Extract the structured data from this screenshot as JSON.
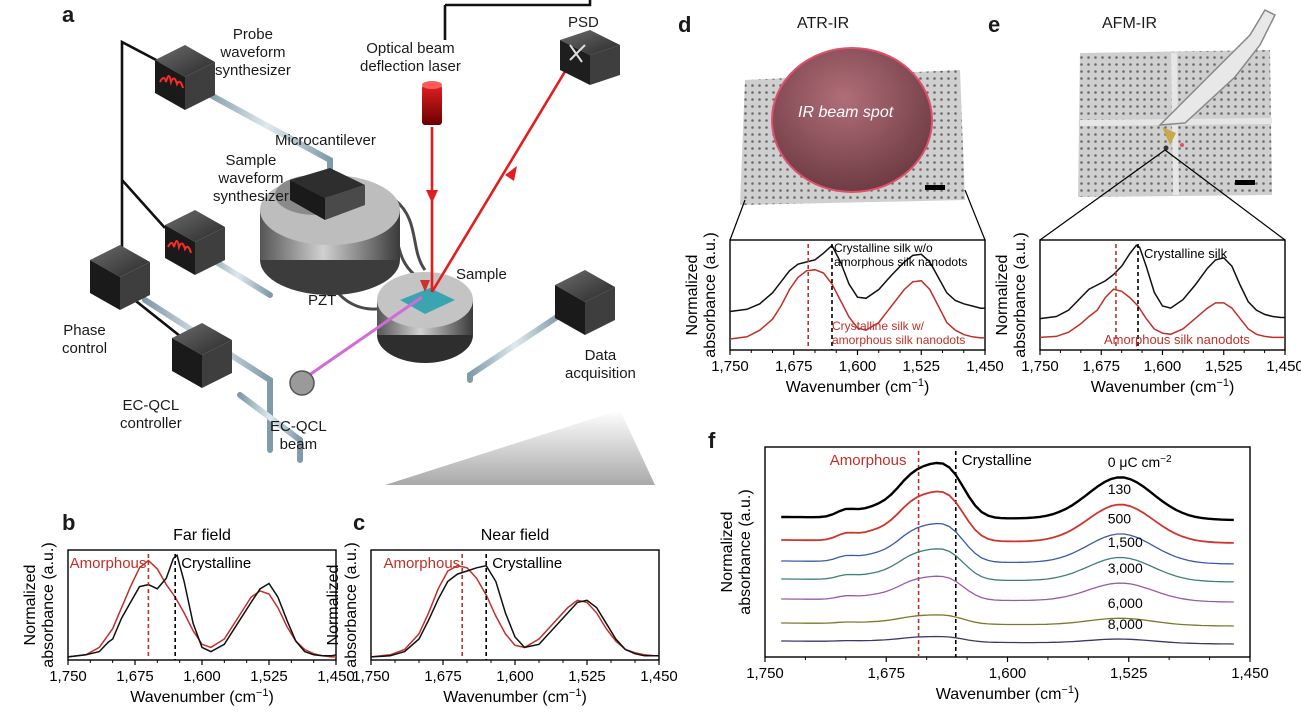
{
  "panel_letters": [
    "a",
    "b",
    "c",
    "d",
    "e",
    "f"
  ],
  "panel_a": {
    "labels": {
      "probe": [
        "Probe",
        "waveform",
        "synthesizer"
      ],
      "optical": [
        "Optical beam",
        "deflection laser"
      ],
      "psd": "PSD",
      "sample_wf": [
        "Sample",
        "waveform",
        "synthesizer"
      ],
      "microcantilever": "Microcantilever",
      "pzt": "PZT",
      "sample": "Sample",
      "phase": [
        "Phase",
        "control"
      ],
      "ecqcl_controller": [
        "EC-QCL",
        "controller"
      ],
      "ecqcl_beam": [
        "EC-QCL",
        "beam"
      ],
      "data_acq": [
        "Data",
        "acquisition"
      ]
    }
  },
  "panel_d": {
    "title": "ATR-IR",
    "spot": "IR beam spot"
  },
  "panel_e": {
    "title": "AFM-IR"
  },
  "axis": {
    "xlabel": "Wavenumber (cm",
    "xlabel_sup": "−1",
    "xlabel_end": ")",
    "ylabel": [
      "Normalized",
      "absorbance (a.u.)"
    ]
  },
  "chart_data": [
    {
      "id": "b",
      "type": "line",
      "title": "Far field",
      "x_reversed": true,
      "xlim": [
        1750,
        1450
      ],
      "xticks": [
        "1,750",
        "1,675",
        "1,600",
        "1,525",
        "1,450"
      ],
      "annotations": {
        "red": "Amorphous",
        "black": "Crystalline"
      },
      "vlines": [
        1660,
        1630
      ],
      "series": [
        {
          "name": "Amorphous",
          "color": "#c0302a",
          "x": [
            1750,
            1730,
            1715,
            1700,
            1690,
            1680,
            1670,
            1660,
            1650,
            1640,
            1630,
            1620,
            1610,
            1600,
            1590,
            1575,
            1560,
            1545,
            1535,
            1525,
            1515,
            1505,
            1495,
            1485,
            1475,
            1465,
            1455,
            1450
          ],
          "y": [
            0.03,
            0.05,
            0.12,
            0.3,
            0.5,
            0.7,
            0.88,
            0.95,
            0.87,
            0.72,
            0.6,
            0.45,
            0.28,
            0.15,
            0.12,
            0.2,
            0.4,
            0.6,
            0.66,
            0.63,
            0.5,
            0.32,
            0.18,
            0.1,
            0.06,
            0.04,
            0.03,
            0.03
          ]
        },
        {
          "name": "Crystalline",
          "color": "#111111",
          "x": [
            1750,
            1730,
            1715,
            1705,
            1700,
            1690,
            1680,
            1670,
            1660,
            1650,
            1640,
            1632,
            1628,
            1620,
            1610,
            1600,
            1590,
            1575,
            1560,
            1545,
            1535,
            1525,
            1515,
            1505,
            1495,
            1485,
            1475,
            1465,
            1455,
            1450
          ],
          "y": [
            0.03,
            0.05,
            0.08,
            0.17,
            0.2,
            0.4,
            0.55,
            0.7,
            0.72,
            0.68,
            0.78,
            0.97,
            1.0,
            0.75,
            0.35,
            0.12,
            0.08,
            0.15,
            0.35,
            0.55,
            0.68,
            0.73,
            0.6,
            0.38,
            0.18,
            0.08,
            0.05,
            0.04,
            0.04,
            0.05
          ]
        }
      ]
    },
    {
      "id": "c",
      "type": "line",
      "title": "Near field",
      "x_reversed": true,
      "xlim": [
        1750,
        1450
      ],
      "xticks": [
        "1,750",
        "1,675",
        "1,600",
        "1,525",
        "1,450"
      ],
      "annotations": {
        "red": "Amorphous",
        "black": "Crystalline"
      },
      "vlines": [
        1655,
        1630
      ],
      "series": [
        {
          "name": "Amorphous",
          "color": "#c0302a",
          "x": [
            1750,
            1730,
            1715,
            1700,
            1690,
            1680,
            1670,
            1660,
            1650,
            1640,
            1630,
            1620,
            1610,
            1600,
            1590,
            1575,
            1560,
            1545,
            1535,
            1525,
            1515,
            1505,
            1495,
            1485,
            1475,
            1465,
            1455,
            1450
          ],
          "y": [
            0.03,
            0.05,
            0.1,
            0.25,
            0.45,
            0.68,
            0.85,
            0.9,
            0.88,
            0.78,
            0.62,
            0.42,
            0.25,
            0.14,
            0.12,
            0.2,
            0.35,
            0.5,
            0.57,
            0.55,
            0.45,
            0.3,
            0.18,
            0.1,
            0.07,
            0.05,
            0.04,
            0.04
          ]
        },
        {
          "name": "Crystalline",
          "color": "#111111",
          "x": [
            1750,
            1730,
            1715,
            1700,
            1690,
            1680,
            1670,
            1660,
            1650,
            1640,
            1630,
            1620,
            1610,
            1600,
            1590,
            1575,
            1560,
            1545,
            1535,
            1525,
            1515,
            1505,
            1495,
            1485,
            1475,
            1465,
            1455,
            1450
          ],
          "y": [
            0.03,
            0.04,
            0.08,
            0.2,
            0.38,
            0.58,
            0.75,
            0.82,
            0.85,
            0.88,
            0.9,
            0.75,
            0.45,
            0.22,
            0.12,
            0.15,
            0.3,
            0.45,
            0.55,
            0.57,
            0.5,
            0.35,
            0.2,
            0.1,
            0.06,
            0.04,
            0.04,
            0.04
          ]
        }
      ]
    },
    {
      "id": "d",
      "type": "line",
      "x_reversed": true,
      "xlim": [
        1750,
        1450
      ],
      "xticks": [
        "1,750",
        "1,675",
        "1,600",
        "1,525",
        "1,450"
      ],
      "annotations": {
        "black": [
          "Crystalline silk w/o",
          "amorphous silk nanodots"
        ],
        "red": [
          "Crystalline silk w/",
          "amorphous silk nanodots"
        ]
      },
      "vlines": [
        1658,
        1630
      ],
      "series": [
        {
          "name": "Crystalline silk w/o amorphous silk nanodots",
          "color": "#111111",
          "x": [
            1750,
            1730,
            1715,
            1700,
            1690,
            1680,
            1670,
            1660,
            1650,
            1640,
            1630,
            1620,
            1610,
            1600,
            1590,
            1575,
            1560,
            1545,
            1535,
            1525,
            1515,
            1505,
            1495,
            1485,
            1475,
            1465,
            1455,
            1450
          ],
          "y": [
            0.35,
            0.37,
            0.42,
            0.52,
            0.62,
            0.72,
            0.78,
            0.8,
            0.82,
            0.88,
            0.95,
            0.8,
            0.6,
            0.48,
            0.47,
            0.55,
            0.68,
            0.8,
            0.86,
            0.87,
            0.8,
            0.66,
            0.52,
            0.45,
            0.42,
            0.4,
            0.38,
            0.38
          ]
        },
        {
          "name": "Crystalline silk w/ amorphous silk nanodots",
          "color": "#c0302a",
          "x": [
            1750,
            1730,
            1715,
            1700,
            1690,
            1680,
            1670,
            1660,
            1650,
            1640,
            1630,
            1620,
            1610,
            1600,
            1590,
            1575,
            1560,
            1545,
            1535,
            1525,
            1515,
            1505,
            1495,
            1485,
            1475,
            1465,
            1455,
            1450
          ],
          "y": [
            0.1,
            0.12,
            0.18,
            0.28,
            0.4,
            0.55,
            0.66,
            0.72,
            0.73,
            0.7,
            0.6,
            0.45,
            0.3,
            0.2,
            0.18,
            0.25,
            0.4,
            0.55,
            0.62,
            0.63,
            0.55,
            0.4,
            0.25,
            0.18,
            0.14,
            0.12,
            0.11,
            0.11
          ]
        }
      ]
    },
    {
      "id": "e",
      "type": "line",
      "x_reversed": true,
      "xlim": [
        1750,
        1450
      ],
      "xticks": [
        "1,750",
        "1,675",
        "1,600",
        "1,525",
        "1,450"
      ],
      "annotations": {
        "black": "Crystalline silk",
        "red": "Amorphous silk nanodots"
      },
      "vlines": [
        1657,
        1630
      ],
      "series": [
        {
          "name": "Crystalline silk",
          "color": "#111111",
          "x": [
            1750,
            1730,
            1715,
            1700,
            1690,
            1680,
            1670,
            1660,
            1650,
            1640,
            1632,
            1628,
            1620,
            1610,
            1600,
            1590,
            1575,
            1560,
            1545,
            1535,
            1525,
            1515,
            1505,
            1495,
            1485,
            1475,
            1465,
            1455,
            1450
          ],
          "y": [
            0.3,
            0.32,
            0.38,
            0.5,
            0.58,
            0.62,
            0.66,
            0.72,
            0.8,
            0.92,
            1.0,
            0.98,
            0.8,
            0.55,
            0.42,
            0.4,
            0.48,
            0.62,
            0.78,
            0.86,
            0.88,
            0.8,
            0.62,
            0.46,
            0.38,
            0.34,
            0.32,
            0.31,
            0.31
          ]
        },
        {
          "name": "Amorphous silk nanodots",
          "color": "#c0302a",
          "x": [
            1750,
            1730,
            1715,
            1700,
            1690,
            1680,
            1670,
            1660,
            1650,
            1640,
            1630,
            1620,
            1610,
            1600,
            1590,
            1575,
            1560,
            1545,
            1535,
            1525,
            1515,
            1505,
            1495,
            1485,
            1475,
            1465,
            1455,
            1450
          ],
          "y": [
            0.12,
            0.13,
            0.17,
            0.25,
            0.32,
            0.38,
            0.5,
            0.58,
            0.56,
            0.5,
            0.42,
            0.3,
            0.2,
            0.16,
            0.15,
            0.2,
            0.3,
            0.4,
            0.45,
            0.45,
            0.4,
            0.3,
            0.2,
            0.15,
            0.13,
            0.12,
            0.12,
            0.12
          ]
        }
      ]
    },
    {
      "id": "f",
      "type": "line",
      "x_reversed": true,
      "xlim": [
        1750,
        1450
      ],
      "xticks": [
        "1,750",
        "1,675",
        "1,600",
        "1,525",
        "1,450"
      ],
      "annotations": {
        "red": "Amorphous",
        "black": "Crystalline"
      },
      "vlines": [
        1655,
        1632
      ],
      "dose_unit": "μC cm",
      "dose_unit_sup": "−2",
      "series": [
        {
          "name": "0",
          "color": "#000000",
          "offset": 0.7,
          "amp": 0.3,
          "width": 2.4
        },
        {
          "name": "130",
          "color": "#d0342c",
          "offset": 0.585,
          "amp": 0.27,
          "width": 1.8
        },
        {
          "name": "500",
          "color": "#3a5aa8",
          "offset": 0.48,
          "amp": 0.21,
          "width": 1.3
        },
        {
          "name": "1,500",
          "color": "#3f7f7a",
          "offset": 0.39,
          "amp": 0.17,
          "width": 1.3
        },
        {
          "name": "3,000",
          "color": "#9a5aa8",
          "offset": 0.29,
          "amp": 0.13,
          "width": 1.3
        },
        {
          "name": "6,000",
          "color": "#7a7a2a",
          "offset": 0.17,
          "amp": 0.05,
          "width": 1.3
        },
        {
          "name": "8,000",
          "color": "#3a3a6a",
          "offset": 0.08,
          "amp": 0.03,
          "width": 1.3
        }
      ]
    }
  ]
}
